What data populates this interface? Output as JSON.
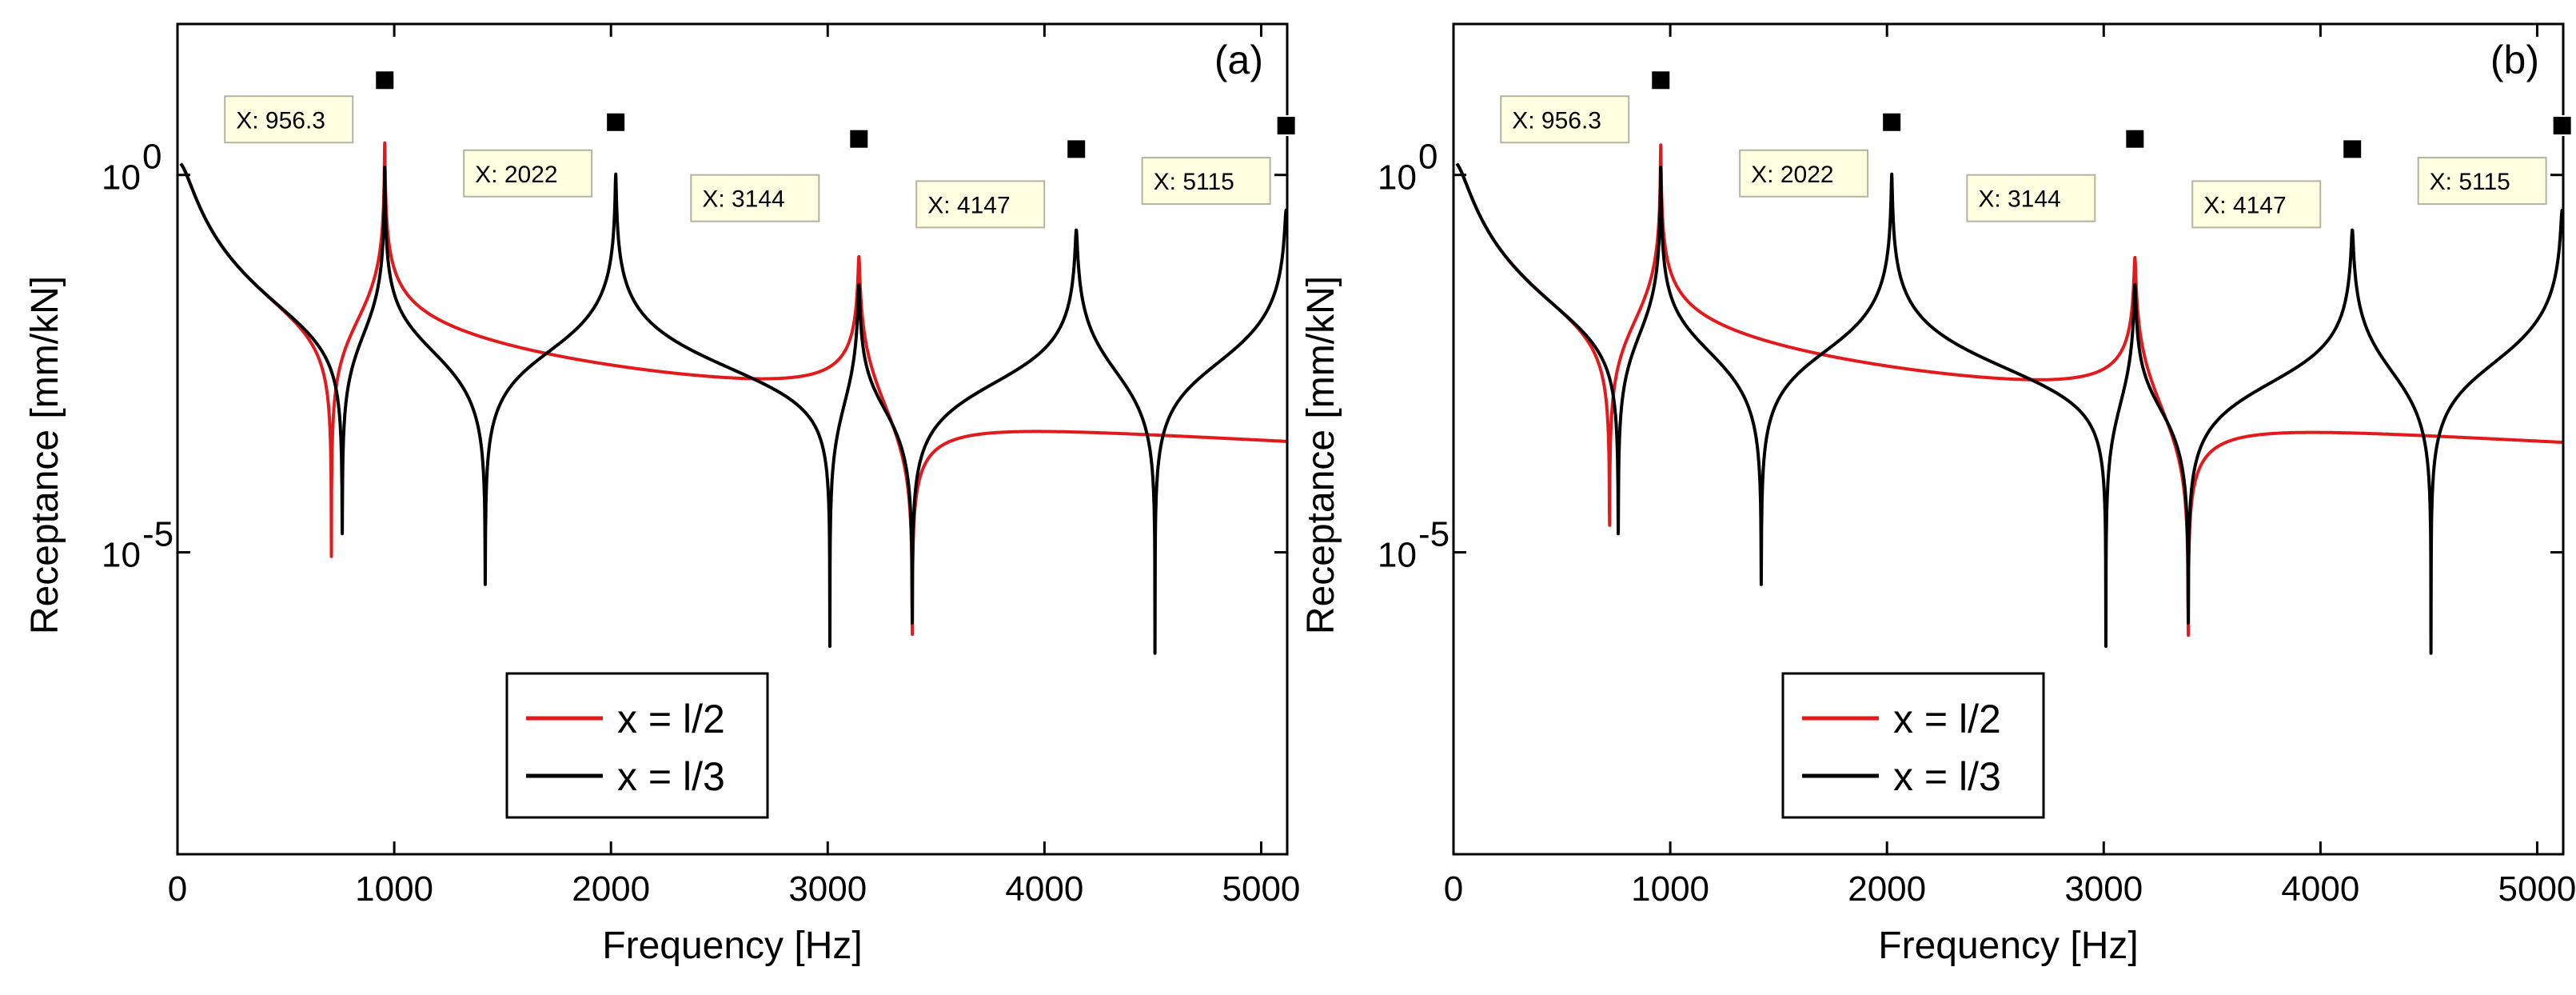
{
  "chart_data": [
    {
      "type": "line",
      "panel_label": "(a)",
      "xlabel": "Frequency [Hz]",
      "ylabel": "Receptance [mm/kN]",
      "xlim": [
        0,
        5120
      ],
      "x_ticks": [
        0,
        1000,
        2000,
        3000,
        4000,
        5000
      ],
      "yscale": "log",
      "ylim": [
        1e-09,
        100.0
      ],
      "y_ticks": [
        {
          "value": 1,
          "base": "10",
          "exp": "0"
        },
        {
          "value": 1e-05,
          "base": "10",
          "exp": "-5"
        }
      ],
      "legend": {
        "placement": "lower-center"
      },
      "series": [
        {
          "name": "x = l/2",
          "color": "#e31a1c",
          "resonances": [
            956.3,
            3144
          ],
          "antiresonances": [
            710,
            3390
          ]
        },
        {
          "name": "x = l/3",
          "color": "#000000",
          "resonances": [
            956.3,
            2022,
            3144,
            4147,
            5115
          ],
          "antiresonances": [
            760,
            1420,
            3010,
            3390,
            4510
          ]
        }
      ],
      "datatips": [
        {
          "label": "X: 956.3",
          "x": 956.3,
          "y": 18
        },
        {
          "label": "X: 2022",
          "x": 2022,
          "y": 5
        },
        {
          "label": "X: 3144",
          "x": 3144,
          "y": 3
        },
        {
          "label": "X: 4147",
          "x": 4147,
          "y": 2.2
        },
        {
          "label": "X: 5115",
          "x": 5115,
          "y": 4.5
        }
      ]
    },
    {
      "type": "line",
      "panel_label": "(b)",
      "xlabel": "Frequency [Hz]",
      "ylabel": "Receptance [mm/kN]",
      "xlim": [
        0,
        5120
      ],
      "x_ticks": [
        0,
        1000,
        2000,
        3000,
        4000,
        5000
      ],
      "yscale": "log",
      "ylim": [
        1e-09,
        100.0
      ],
      "y_ticks": [
        {
          "value": 1,
          "base": "10",
          "exp": "0"
        },
        {
          "value": 1e-05,
          "base": "10",
          "exp": "-5"
        }
      ],
      "legend": {
        "placement": "lower-center"
      },
      "series": [
        {
          "name": "x = l/2",
          "color": "#e31a1c",
          "resonances": [
            956.3,
            3144
          ],
          "antiresonances": [
            720,
            3390
          ]
        },
        {
          "name": "x = l/3",
          "color": "#000000",
          "resonances": [
            956.3,
            2022,
            3144,
            4147,
            5115
          ],
          "antiresonances": [
            760,
            1420,
            3010,
            3390,
            4510
          ]
        }
      ],
      "datatips": [
        {
          "label": "X: 956.3",
          "x": 956.3,
          "y": 18
        },
        {
          "label": "X: 2022",
          "x": 2022,
          "y": 5
        },
        {
          "label": "X: 3144",
          "x": 3144,
          "y": 3
        },
        {
          "label": "X: 4147",
          "x": 4147,
          "y": 2.2
        },
        {
          "label": "X: 5115",
          "x": 5115,
          "y": 4.5
        }
      ]
    }
  ]
}
